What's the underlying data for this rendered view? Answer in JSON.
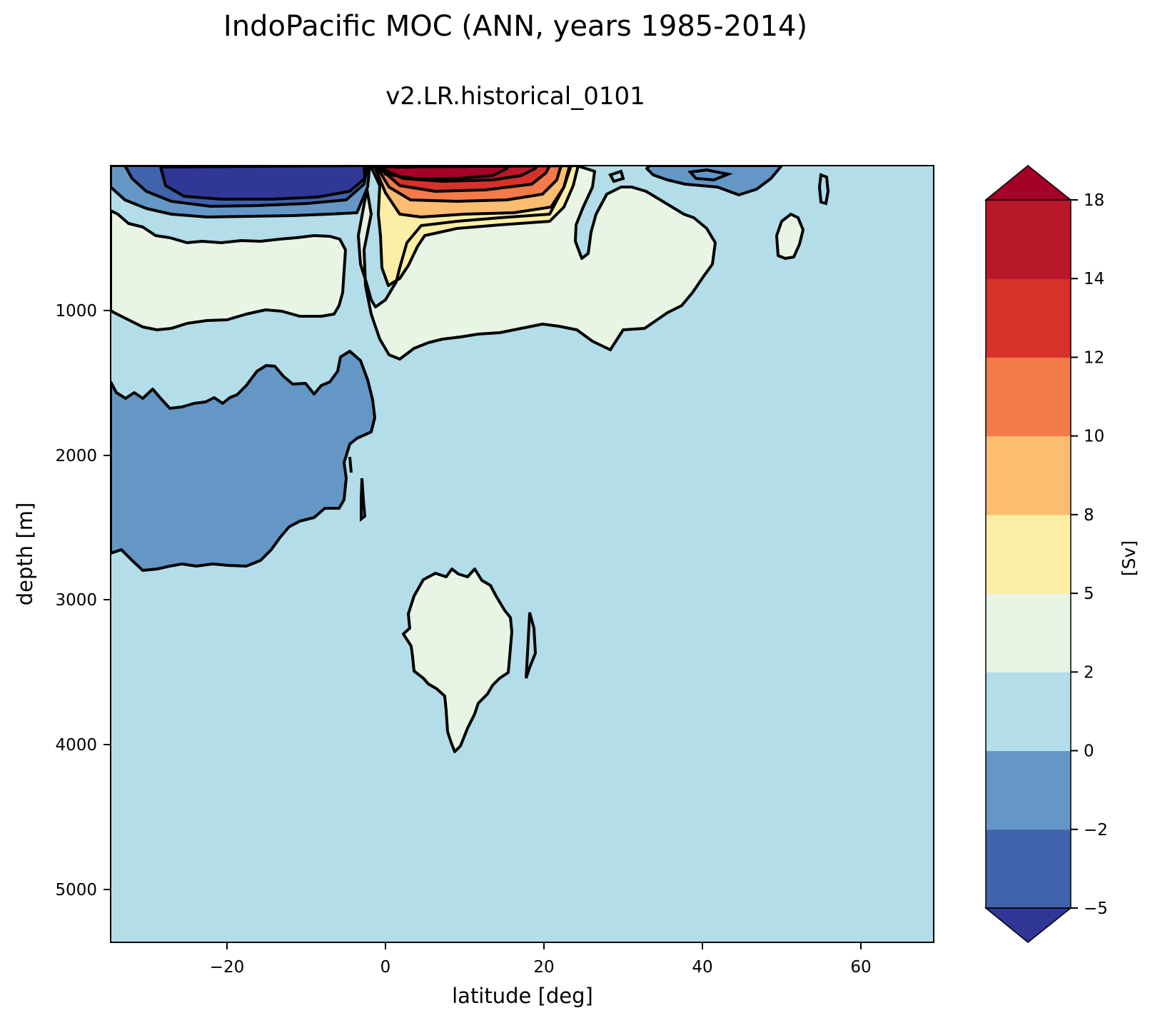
{
  "chart_data": {
    "type": "contour",
    "title": "IndoPacific MOC (ANN, years 1985-2014)",
    "subtitle": "v2.LR.historical_0101",
    "xlabel": "latitude [deg]",
    "ylabel": "depth [m]",
    "xlim": [
      -34.5,
      69.5
    ],
    "ylim": [
      5400,
      0
    ],
    "xticks": [
      -20,
      0,
      20,
      40,
      60
    ],
    "xtick_labels": [
      "−20",
      "0",
      "20",
      "40",
      "60"
    ],
    "yticks": [
      1000,
      2000,
      3000,
      4000,
      5000
    ],
    "ytick_labels": [
      "1000",
      "2000",
      "3000",
      "4000",
      "5000"
    ],
    "colorbar": {
      "label": "[Sv]",
      "levels": [
        -5,
        -2,
        0,
        2,
        5,
        8,
        10,
        12,
        14,
        18
      ],
      "tick_labels": [
        "−5",
        "−2",
        "0",
        "2",
        "5",
        "8",
        "10",
        "12",
        "14",
        "18"
      ],
      "colors": [
        "#4163ac",
        "#6497c6",
        "#b2dde9",
        "#e8f4e4",
        "#fdeea5",
        "#fcbd71",
        "#f47a4a",
        "#d6322a",
        "#b8182a"
      ],
      "under_color": "#313795",
      "over_color": "#a50026",
      "extend": "both"
    },
    "background_value_band": [
      0,
      2
    ],
    "regions": [
      {
        "name": "southern-surface-cell",
        "band": [
          -2,
          0
        ],
        "lat_range": [
          -34,
          -2
        ],
        "depth_range": [
          0,
          400
        ]
      },
      {
        "name": "southern-surface-core",
        "band": "< -5",
        "lat_range": [
          -28,
          -3
        ],
        "depth_range": [
          0,
          250
        ]
      },
      {
        "name": "northern-surface-cell",
        "band": [
          5,
          8
        ],
        "lat_range": [
          -2,
          24
        ],
        "depth_range": [
          0,
          800
        ]
      },
      {
        "name": "northern-surface-core",
        "band": "> 18",
        "lat_range": [
          0,
          14
        ],
        "depth_range": [
          0,
          100
        ]
      },
      {
        "name": "intermediate-positive-south",
        "band": [
          2,
          5
        ],
        "lat_range": [
          -34,
          -5
        ],
        "depth_range": [
          300,
          1200
        ]
      },
      {
        "name": "intermediate-positive-north",
        "band": [
          2,
          5
        ],
        "lat_range": [
          -2,
          52
        ],
        "depth_range": [
          100,
          1350
        ]
      },
      {
        "name": "deep-negative-cell",
        "band": [
          -2,
          0
        ],
        "lat_range": [
          -34,
          -1
        ],
        "depth_range": [
          1300,
          2850
        ]
      },
      {
        "name": "abyssal-positive-patch",
        "band": [
          2,
          5
        ],
        "lat_range": [
          3,
          20
        ],
        "depth_range": [
          2800,
          4050
        ]
      },
      {
        "name": "northern-surface-negative",
        "band": [
          -2,
          0
        ],
        "lat_range": [
          33,
          50
        ],
        "depth_range": [
          0,
          200
        ]
      }
    ]
  }
}
